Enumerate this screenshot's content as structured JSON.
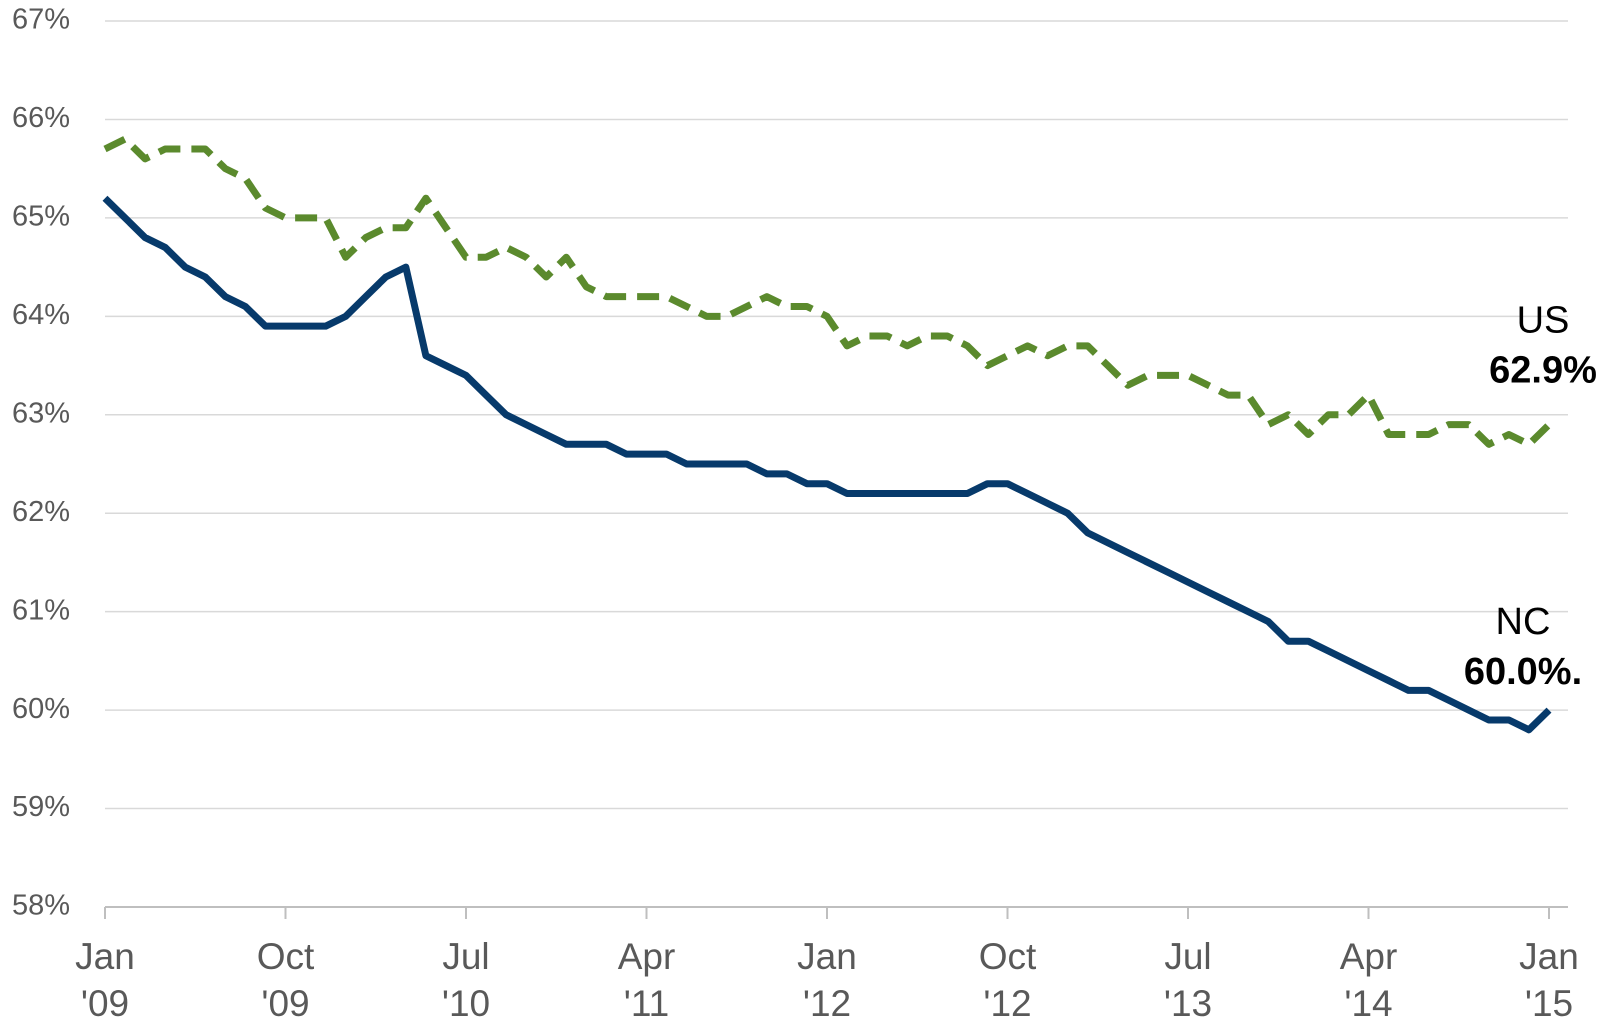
{
  "chart_data": {
    "type": "line",
    "categories": [
      "Jan\n'09",
      null,
      null,
      null,
      null,
      null,
      null,
      null,
      null,
      "Oct\n'09",
      null,
      null,
      null,
      null,
      null,
      null,
      null,
      null,
      "Jul\n'10",
      null,
      null,
      null,
      null,
      null,
      null,
      null,
      null,
      "Apr\n'11",
      null,
      null,
      null,
      null,
      null,
      null,
      null,
      null,
      "Jan\n'12",
      null,
      null,
      null,
      null,
      null,
      null,
      null,
      null,
      "Oct\n'12",
      null,
      null,
      null,
      null,
      null,
      null,
      null,
      null,
      "Jul\n'13",
      null,
      null,
      null,
      null,
      null,
      null,
      null,
      null,
      "Apr\n'14",
      null,
      null,
      null,
      null,
      null,
      null,
      null,
      null,
      "Jan\n'15"
    ],
    "series": [
      {
        "name": "US",
        "end_label": "62.9%",
        "color": "#5b8a2d",
        "dashed": true,
        "values": [
          65.7,
          65.8,
          65.6,
          65.7,
          65.7,
          65.7,
          65.5,
          65.4,
          65.1,
          65.0,
          65.0,
          65.0,
          64.6,
          64.8,
          64.9,
          64.9,
          65.2,
          64.9,
          64.6,
          64.6,
          64.7,
          64.6,
          64.4,
          64.6,
          64.3,
          64.2,
          64.2,
          64.2,
          64.2,
          64.1,
          64.0,
          64.0,
          64.1,
          64.2,
          64.1,
          64.1,
          64.0,
          63.7,
          63.8,
          63.8,
          63.7,
          63.8,
          63.8,
          63.7,
          63.5,
          63.6,
          63.7,
          63.6,
          63.7,
          63.7,
          63.5,
          63.3,
          63.4,
          63.4,
          63.4,
          63.3,
          63.2,
          63.2,
          62.9,
          63.0,
          62.8,
          63.0,
          63.0,
          63.2,
          62.8,
          62.8,
          62.8,
          62.9,
          62.9,
          62.7,
          62.8,
          62.7,
          62.9
        ]
      },
      {
        "name": "NC",
        "end_label": "60.0%.",
        "color": "#073a6b",
        "dashed": false,
        "values": [
          65.2,
          65.0,
          64.8,
          64.7,
          64.5,
          64.4,
          64.2,
          64.1,
          63.9,
          63.9,
          63.9,
          63.9,
          64.0,
          64.2,
          64.4,
          64.5,
          63.6,
          63.5,
          63.4,
          63.2,
          63.0,
          62.9,
          62.8,
          62.7,
          62.7,
          62.7,
          62.6,
          62.6,
          62.6,
          62.5,
          62.5,
          62.5,
          62.5,
          62.4,
          62.4,
          62.3,
          62.3,
          62.2,
          62.2,
          62.2,
          62.2,
          62.2,
          62.2,
          62.2,
          62.3,
          62.3,
          62.2,
          62.1,
          62.0,
          61.8,
          61.7,
          61.6,
          61.5,
          61.4,
          61.3,
          61.2,
          61.1,
          61.0,
          60.9,
          60.7,
          60.7,
          60.6,
          60.5,
          60.4,
          60.3,
          60.2,
          60.2,
          60.1,
          60.0,
          59.9,
          59.9,
          59.8,
          60.0
        ]
      }
    ],
    "ylim": [
      58,
      67
    ],
    "yticks": [
      {
        "value": 58,
        "label": "58%"
      },
      {
        "value": 59,
        "label": "59%"
      },
      {
        "value": 60,
        "label": "60%"
      },
      {
        "value": 61,
        "label": "61%"
      },
      {
        "value": 62,
        "label": "62%"
      },
      {
        "value": 63,
        "label": "63%"
      },
      {
        "value": 64,
        "label": "64%"
      },
      {
        "value": 65,
        "label": "65%"
      },
      {
        "value": 66,
        "label": "66%"
      },
      {
        "value": 67,
        "label": "67%"
      }
    ],
    "grid": true
  }
}
